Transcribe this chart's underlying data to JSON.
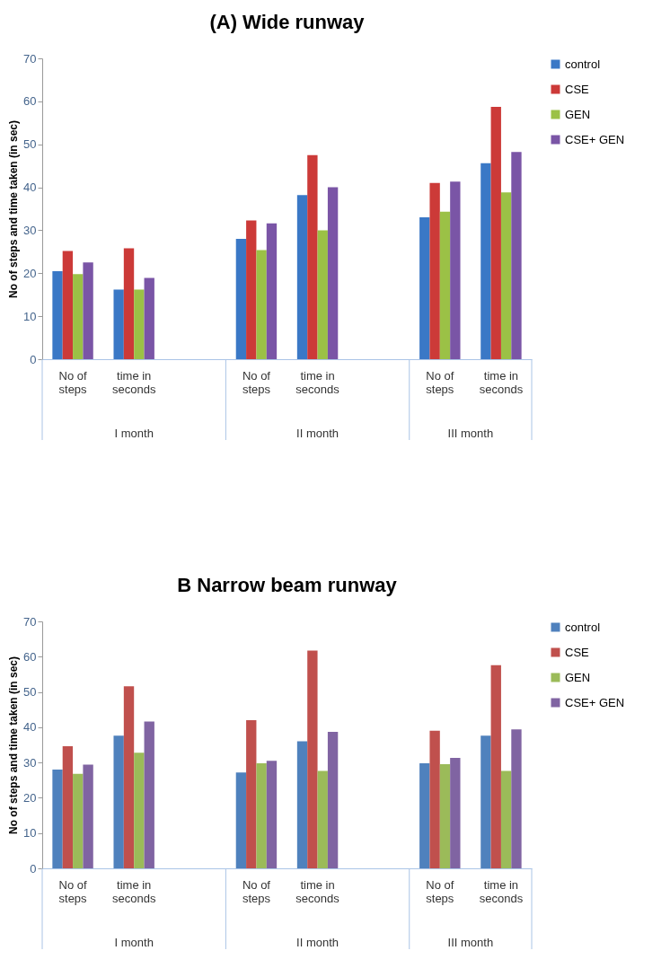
{
  "chart_data": [
    {
      "type": "bar",
      "title": "(A) Wide runway",
      "ylabel": "No of steps and time taken (in sec)",
      "categories": [
        "No of steps",
        "time in seconds",
        null,
        "No of steps",
        "time in seconds",
        null,
        "No of steps",
        "time in seconds"
      ],
      "ylim": [
        0,
        70
      ],
      "yticks": [
        0,
        10,
        20,
        30,
        40,
        50,
        60,
        70
      ],
      "legend": "right",
      "annotations": [
        "I month",
        "II month",
        "III month"
      ],
      "series": [
        {
          "name": "control",
          "color": "#3a78c6",
          "values": [
            20.5,
            16.2,
            null,
            28,
            38.2,
            null,
            33,
            45.6
          ]
        },
        {
          "name": "CSE",
          "color": "#cc3a38",
          "values": [
            25.2,
            25.8,
            null,
            32.3,
            47.5,
            null,
            41,
            58.7
          ]
        },
        {
          "name": "GEN",
          "color": "#9bc146",
          "values": [
            19.8,
            16.2,
            null,
            25.4,
            30,
            null,
            34.3,
            38.8
          ]
        },
        {
          "name": "CSE+ GEN",
          "color": "#7a55a6",
          "values": [
            22.5,
            18.9,
            null,
            31.6,
            40,
            null,
            41.3,
            48.2
          ]
        }
      ]
    },
    {
      "type": "bar",
      "title": "B   Narrow beam runway",
      "ylabel": "No of steps and time taken (in sec)",
      "categories": [
        "No of steps",
        "time in seconds",
        null,
        "No of steps",
        "time in seconds",
        null,
        "No of steps",
        "time in seconds"
      ],
      "ylim": [
        0,
        70
      ],
      "yticks": [
        0,
        10,
        20,
        30,
        40,
        50,
        60,
        70
      ],
      "legend": "right",
      "annotations": [
        "I month",
        "II month",
        "III month"
      ],
      "series": [
        {
          "name": "control",
          "color": "#4f81bd",
          "values": [
            28,
            37.6,
            null,
            27.2,
            36,
            null,
            29.8,
            37.6
          ]
        },
        {
          "name": "CSE",
          "color": "#c0504d",
          "values": [
            34.6,
            51.6,
            null,
            42,
            61.7,
            null,
            39,
            57.6
          ]
        },
        {
          "name": "GEN",
          "color": "#9bbb59",
          "values": [
            26.8,
            32.8,
            null,
            29.8,
            27.6,
            null,
            29.5,
            27.6
          ]
        },
        {
          "name": "CSE+ GEN",
          "color": "#8064a2",
          "values": [
            29.4,
            41.6,
            null,
            30.5,
            38.7,
            null,
            31.3,
            39.4
          ]
        }
      ]
    }
  ]
}
